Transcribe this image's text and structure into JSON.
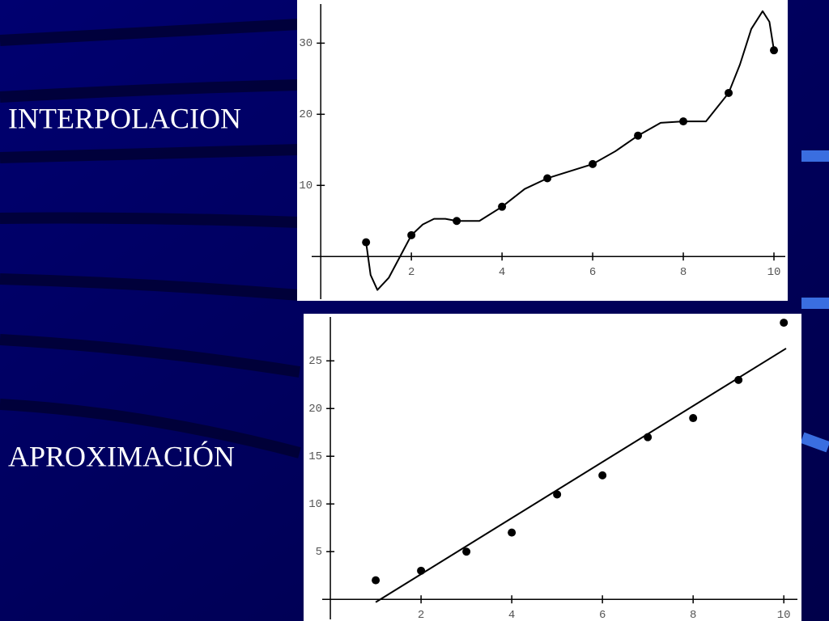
{
  "chart_data": [
    {
      "type": "line",
      "title": "INTERPOLACION",
      "xlim": [
        -0.2,
        10.25
      ],
      "ylim": [
        -6,
        35.5
      ],
      "xticks": [
        2,
        4,
        6,
        8,
        10
      ],
      "yticks": [
        10,
        20,
        30
      ],
      "series": [
        {
          "mode": "markers",
          "color": "#000000",
          "x": [
            1,
            2,
            3,
            4,
            5,
            6,
            7,
            8,
            9,
            10
          ],
          "values": [
            2,
            3,
            5,
            7,
            11,
            13,
            17,
            19,
            23,
            29
          ]
        },
        {
          "mode": "line",
          "color": "#000000",
          "x": [
            1,
            1.1,
            1.25,
            1.5,
            1.75,
            2,
            2.25,
            2.5,
            2.75,
            3,
            3.5,
            4,
            4.5,
            5,
            5.5,
            6,
            6.5,
            7,
            7.5,
            8,
            8.5,
            9,
            9.25,
            9.5,
            9.75,
            9.9,
            10
          ],
          "values": [
            2,
            -2.6,
            -4.7,
            -3,
            0,
            3,
            4.5,
            5.3,
            5.3,
            5,
            5,
            7,
            9.5,
            11,
            12,
            13,
            14.8,
            17,
            18.8,
            19,
            19,
            23,
            27,
            32,
            34.5,
            33,
            29
          ]
        }
      ]
    },
    {
      "type": "line",
      "title": "APROXIMACIÓN",
      "xlim": [
        -0.18,
        10.3
      ],
      "ylim": [
        -2.1,
        29.6
      ],
      "xticks": [
        2,
        4,
        6,
        8,
        10
      ],
      "yticks": [
        5,
        10,
        15,
        20,
        25
      ],
      "series": [
        {
          "mode": "markers",
          "color": "#000000",
          "x": [
            1,
            2,
            3,
            4,
            5,
            6,
            7,
            8,
            9,
            10
          ],
          "values": [
            2,
            3,
            5,
            7,
            11,
            13,
            17,
            19,
            23,
            29
          ]
        },
        {
          "mode": "line",
          "color": "#000000",
          "x": [
            1,
            10.05
          ],
          "values": [
            -0.3,
            26.3
          ]
        }
      ]
    }
  ]
}
